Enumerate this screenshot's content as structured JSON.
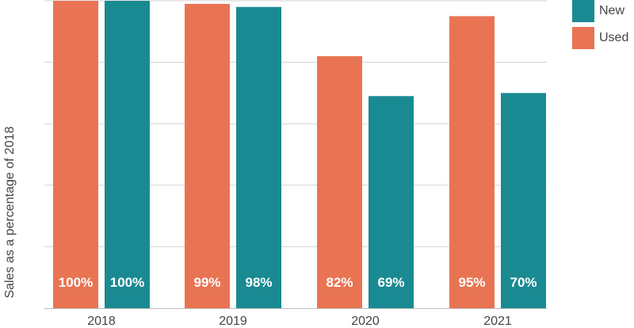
{
  "chart_data": {
    "type": "bar",
    "categories": [
      "2018",
      "2019",
      "2020",
      "2021"
    ],
    "series": [
      {
        "name": "Used",
        "values": [
          100,
          99,
          82,
          95
        ],
        "color": "#e97453"
      },
      {
        "name": "New",
        "values": [
          100,
          98,
          69,
          70
        ],
        "color": "#1a8a92"
      }
    ],
    "data_labels": {
      "Used": [
        "100%",
        "99%",
        "82%",
        "95%"
      ],
      "New": [
        "100%",
        "98%",
        "69%",
        "70%"
      ]
    },
    "ylabel": "Sales as a percentage of 2018",
    "xlabel": "",
    "ylim": [
      0,
      100
    ],
    "grid": true,
    "legend": "top-right",
    "legend_order": [
      "New",
      "Used"
    ]
  }
}
